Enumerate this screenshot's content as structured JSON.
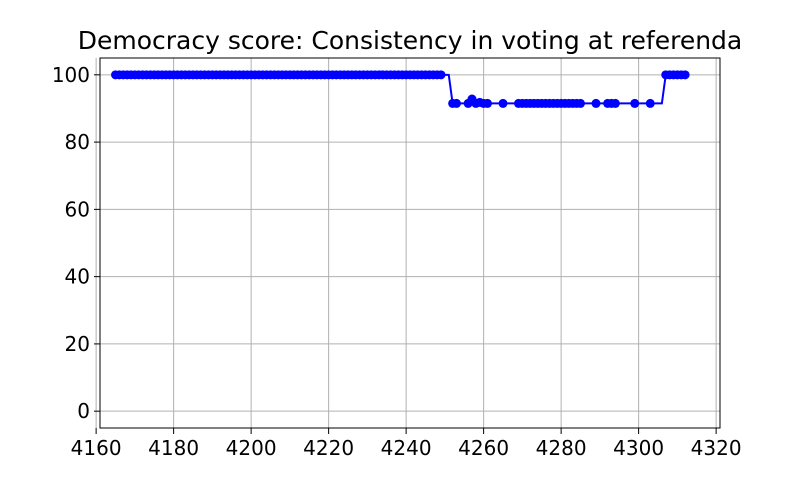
{
  "chart_data": {
    "type": "line",
    "title": "Democracy score: Consistency in voting at referenda",
    "xlabel": "",
    "ylabel": "",
    "xlim": [
      4161,
      4321
    ],
    "ylim": [
      -5,
      105
    ],
    "x_ticks": [
      4160,
      4180,
      4200,
      4220,
      4240,
      4260,
      4280,
      4300,
      4320
    ],
    "y_ticks": [
      0,
      20,
      40,
      60,
      80,
      100
    ],
    "grid": true,
    "legend": "none",
    "series": [
      {
        "color": "#0000ff",
        "points": [
          [
            4165,
            100
          ],
          [
            4166,
            100
          ],
          [
            4167,
            100
          ],
          [
            4168,
            100
          ],
          [
            4169,
            100
          ],
          [
            4170,
            100
          ],
          [
            4171,
            100
          ],
          [
            4172,
            100
          ],
          [
            4173,
            100
          ],
          [
            4174,
            100
          ],
          [
            4175,
            100
          ],
          [
            4176,
            100
          ],
          [
            4177,
            100
          ],
          [
            4178,
            100
          ],
          [
            4179,
            100
          ],
          [
            4180,
            100
          ],
          [
            4181,
            100
          ],
          [
            4182,
            100
          ],
          [
            4183,
            100
          ],
          [
            4184,
            100
          ],
          [
            4185,
            100
          ],
          [
            4186,
            100
          ],
          [
            4187,
            100
          ],
          [
            4188,
            100
          ],
          [
            4189,
            100
          ],
          [
            4190,
            100
          ],
          [
            4191,
            100
          ],
          [
            4192,
            100
          ],
          [
            4193,
            100
          ],
          [
            4194,
            100
          ],
          [
            4195,
            100
          ],
          [
            4196,
            100
          ],
          [
            4197,
            100
          ],
          [
            4198,
            100
          ],
          [
            4199,
            100
          ],
          [
            4200,
            100
          ],
          [
            4201,
            100
          ],
          [
            4202,
            100
          ],
          [
            4203,
            100
          ],
          [
            4204,
            100
          ],
          [
            4205,
            100
          ],
          [
            4206,
            100
          ],
          [
            4207,
            100
          ],
          [
            4208,
            100
          ],
          [
            4209,
            100
          ],
          [
            4210,
            100
          ],
          [
            4211,
            100
          ],
          [
            4212,
            100
          ],
          [
            4213,
            100
          ],
          [
            4214,
            100
          ],
          [
            4215,
            100
          ],
          [
            4216,
            100
          ],
          [
            4217,
            100
          ],
          [
            4218,
            100
          ],
          [
            4219,
            100
          ],
          [
            4220,
            100
          ],
          [
            4221,
            100
          ],
          [
            4222,
            100
          ],
          [
            4223,
            100
          ],
          [
            4224,
            100
          ],
          [
            4225,
            100
          ],
          [
            4226,
            100
          ],
          [
            4227,
            100
          ],
          [
            4228,
            100
          ],
          [
            4229,
            100
          ],
          [
            4230,
            100
          ],
          [
            4231,
            100
          ],
          [
            4232,
            100
          ],
          [
            4233,
            100
          ],
          [
            4234,
            100
          ],
          [
            4235,
            100
          ],
          [
            4236,
            100
          ],
          [
            4237,
            100
          ],
          [
            4238,
            100
          ],
          [
            4239,
            100
          ],
          [
            4240,
            100
          ],
          [
            4241,
            100
          ],
          [
            4242,
            100
          ],
          [
            4243,
            100
          ],
          [
            4244,
            100
          ],
          [
            4245,
            100
          ],
          [
            4246,
            100
          ],
          [
            4247,
            100
          ],
          [
            4248,
            100
          ],
          [
            4249,
            100
          ],
          [
            4252,
            91.5
          ],
          [
            4253,
            91.5
          ],
          [
            4256,
            91.5
          ],
          [
            4257,
            92.8
          ],
          [
            4258,
            91.5
          ],
          [
            4259,
            91.8
          ],
          [
            4260,
            91.5
          ],
          [
            4261,
            91.5
          ],
          [
            4265,
            91.5
          ],
          [
            4269,
            91.5
          ],
          [
            4270,
            91.5
          ],
          [
            4271,
            91.5
          ],
          [
            4272,
            91.5
          ],
          [
            4273,
            91.5
          ],
          [
            4274,
            91.5
          ],
          [
            4275,
            91.5
          ],
          [
            4276,
            91.5
          ],
          [
            4277,
            91.5
          ],
          [
            4278,
            91.5
          ],
          [
            4279,
            91.5
          ],
          [
            4280,
            91.5
          ],
          [
            4281,
            91.5
          ],
          [
            4282,
            91.5
          ],
          [
            4283,
            91.5
          ],
          [
            4284,
            91.5
          ],
          [
            4285,
            91.5
          ],
          [
            4289,
            91.5
          ],
          [
            4292,
            91.5
          ],
          [
            4293,
            91.5
          ],
          [
            4294,
            91.5
          ],
          [
            4299,
            91.5
          ],
          [
            4303,
            91.5
          ],
          [
            4307,
            100
          ],
          [
            4308,
            100
          ],
          [
            4309,
            100
          ],
          [
            4310,
            100
          ],
          [
            4311,
            100
          ],
          [
            4312,
            100
          ]
        ],
        "line_extra": [
          [
            4251,
            100
          ],
          [
            4306,
            91.5
          ],
          [
            4313,
            100
          ]
        ]
      }
    ]
  }
}
